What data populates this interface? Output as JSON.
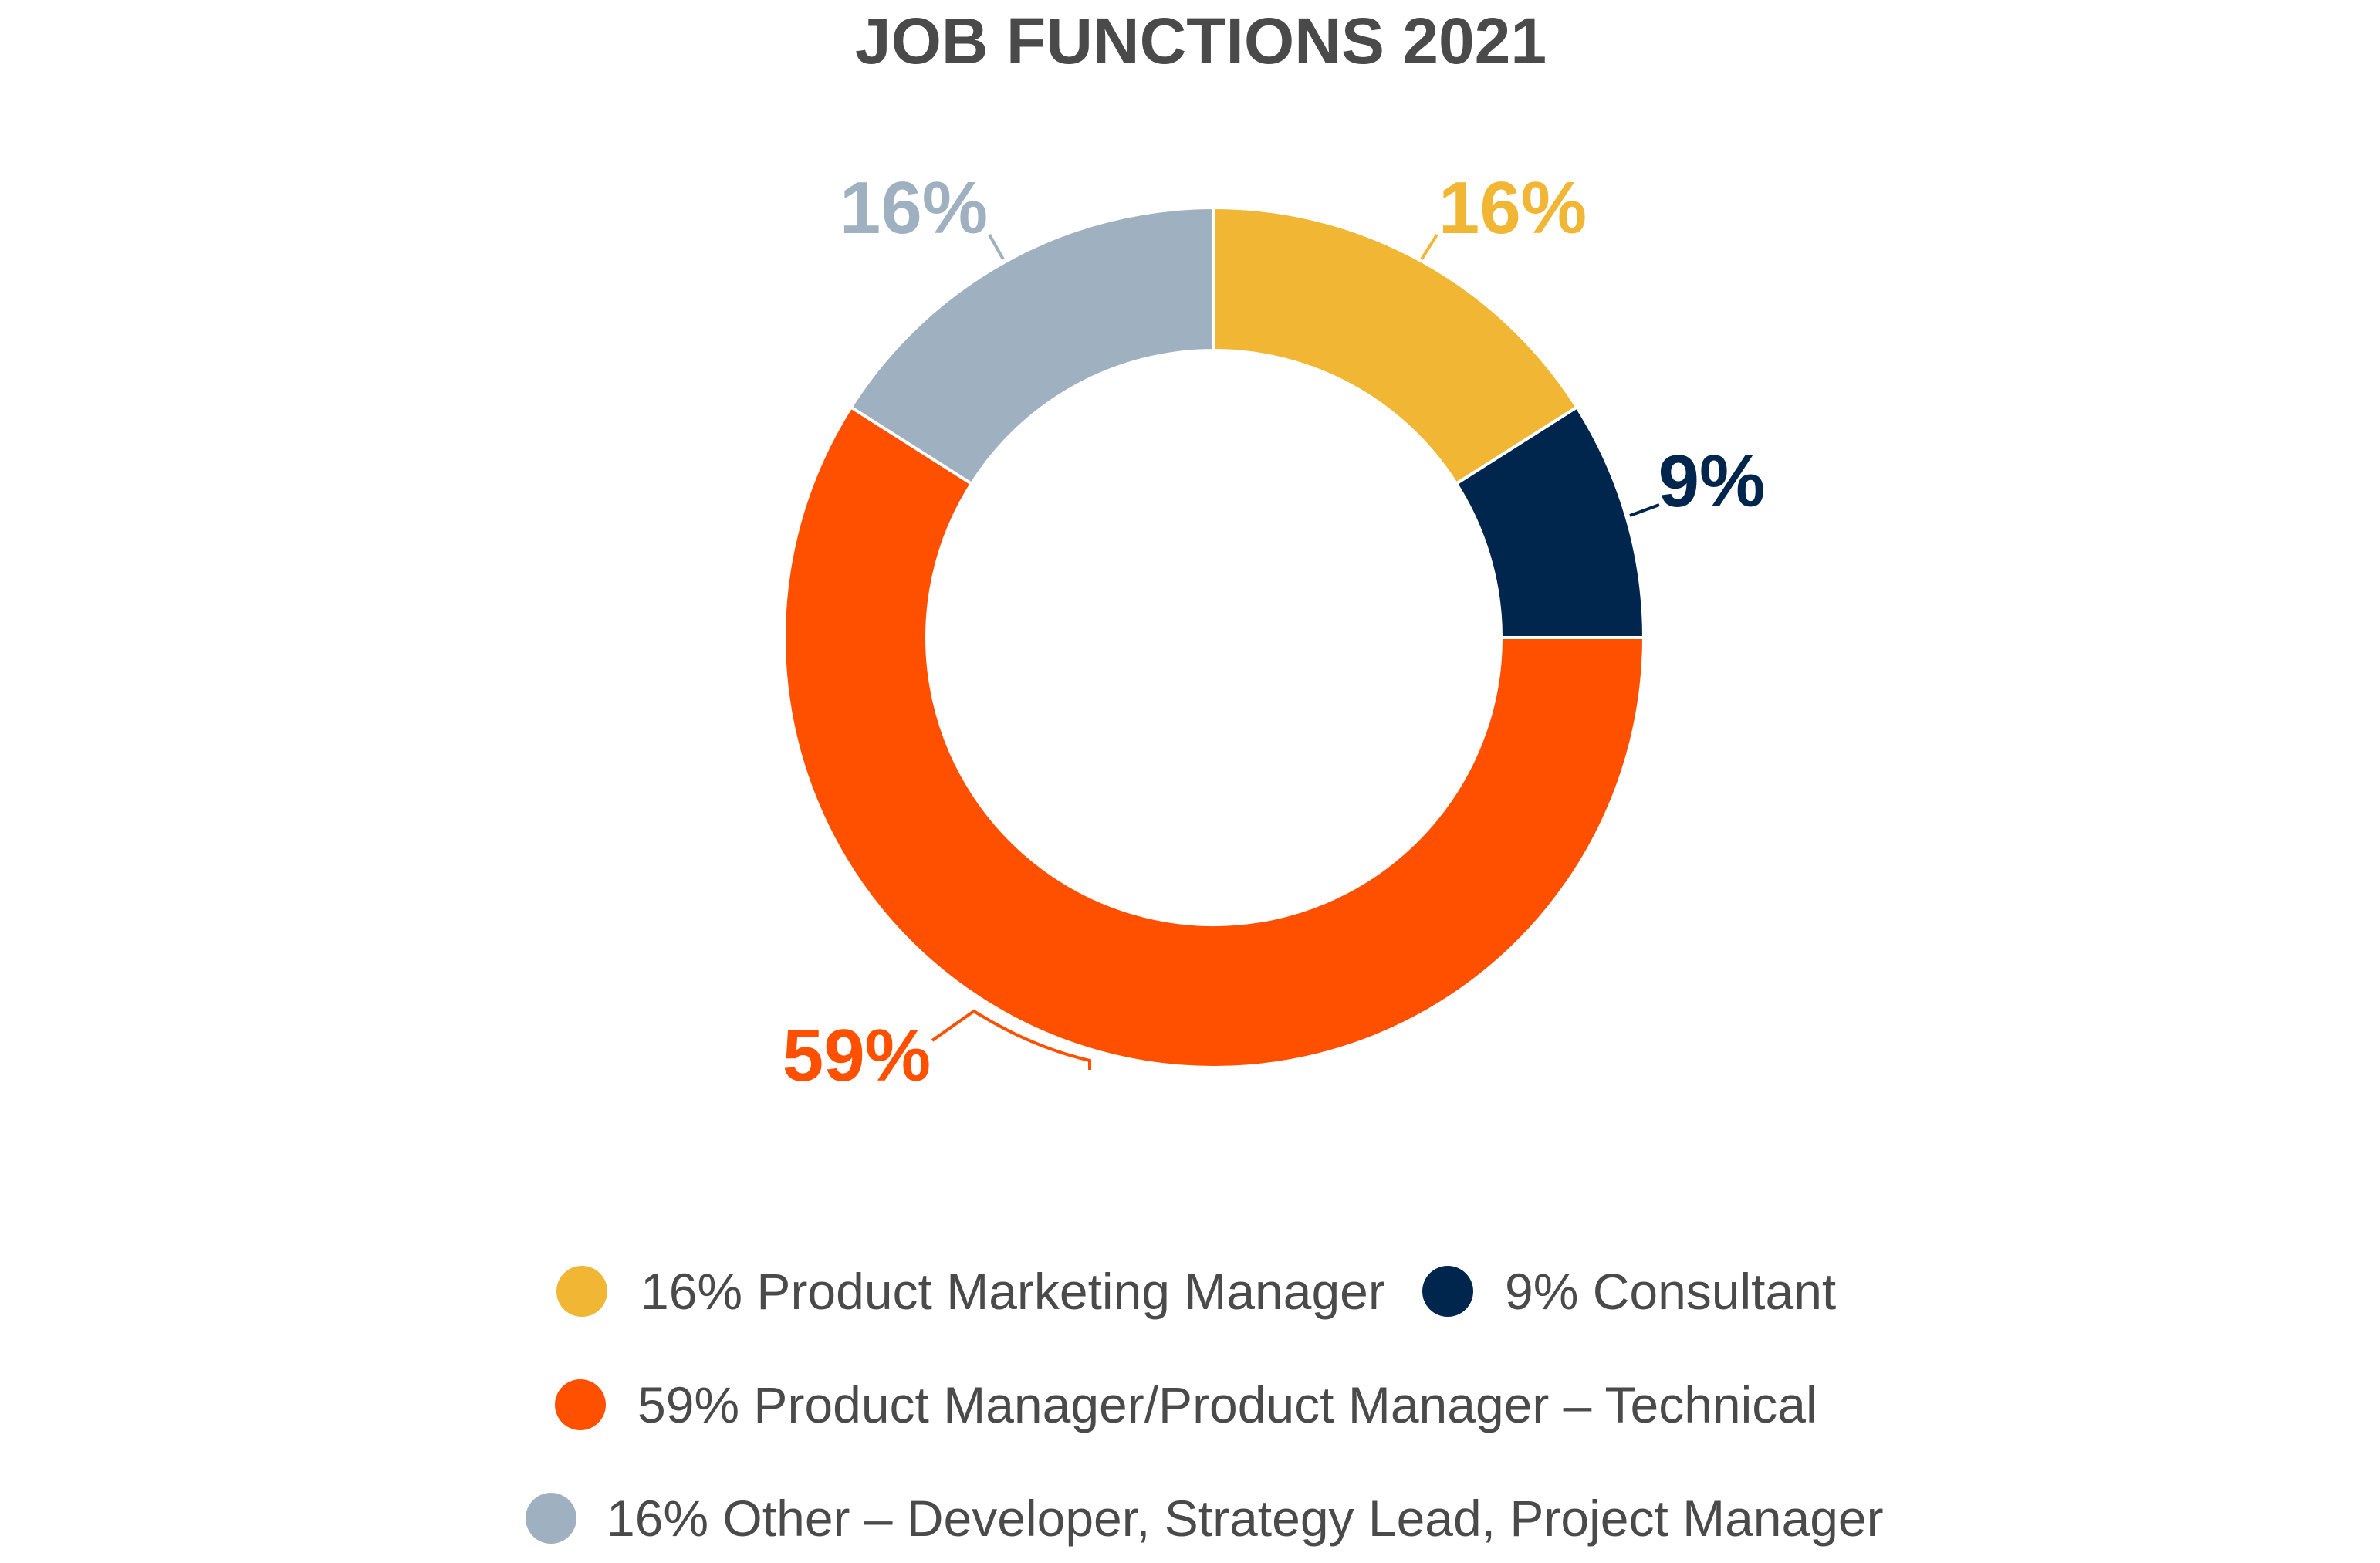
{
  "chart_data": {
    "type": "pie",
    "donut": true,
    "title": "JOB FUNCTIONS 2021",
    "slices": [
      {
        "label": "16%",
        "name": "Product Marketing Manager",
        "legend": "16% Product Marketing Manager",
        "value": 16,
        "color": "#F0B634"
      },
      {
        "label": "9%",
        "name": "Consultant",
        "legend": "9% Consultant",
        "value": 9,
        "color": "#00264D"
      },
      {
        "label": "59%",
        "name": "Product Manager/Product Manager – Technical",
        "legend": "59% Product Manager/Product Manager – Technical",
        "value": 59,
        "color": "#FF5000"
      },
      {
        "label": "16%",
        "name": "Other – Developer, Strategy Lead, Project Manager",
        "legend": "16% Other – Developer, Strategy Lead, Project Manager",
        "value": 16,
        "color": "#9FB1C0"
      }
    ],
    "legend_placement": "bottom"
  }
}
